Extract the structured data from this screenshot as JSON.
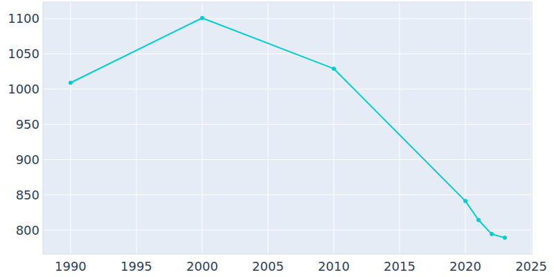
{
  "chart_data": {
    "type": "line",
    "x": [
      1990,
      2000,
      2010,
      2020,
      2021,
      2022,
      2023
    ],
    "values": [
      1009,
      1101,
      1029,
      841,
      814,
      794,
      789
    ],
    "color": "#00ced1",
    "marker": "circle",
    "xlim": [
      1987.9,
      2025.05
    ],
    "xticks": [
      1990,
      1995,
      2000,
      2005,
      2010,
      2015,
      2020,
      2025
    ],
    "ylim": [
      765.6,
      1123.6
    ],
    "yticks": [
      800,
      850,
      900,
      950,
      1000,
      1050,
      1100
    ],
    "grid": true
  }
}
